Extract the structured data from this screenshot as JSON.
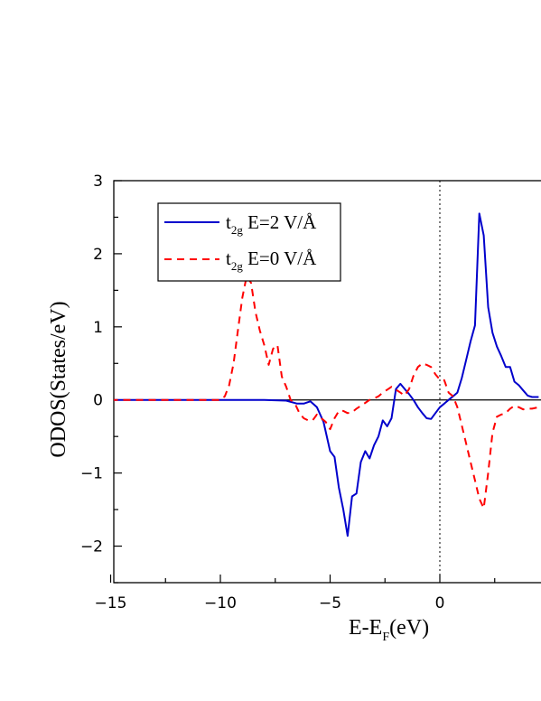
{
  "chart_data": {
    "type": "line",
    "xlabel_main": "E-E",
    "xlabel_sub": "F",
    "xlabel_unit": "(eV)",
    "ylabel": "ODOS(States/eV)",
    "xlim": [
      -15,
      4.5
    ],
    "ylim": [
      -2.5,
      3
    ],
    "xticks": [
      -15,
      -10,
      -5,
      0
    ],
    "xtick_labels": [
      "−15",
      "−10",
      "−5",
      "0"
    ],
    "yticks": [
      -2,
      -1,
      0,
      1,
      2,
      3
    ],
    "ytick_labels": [
      "−2",
      "−1",
      "0",
      "1",
      "2",
      "3"
    ],
    "grid": false,
    "legend_position": "top-left",
    "reference_lines": {
      "zero_horizontal": true,
      "fermi_vertical_dotted": true
    },
    "series": [
      {
        "name_main": "t",
        "name_sub": "2g",
        "name_rest": " E=2 V/Å",
        "color": "#0000cc",
        "dash": "solid",
        "x": [
          -15,
          -10,
          -8,
          -7,
          -6.5,
          -6.2,
          -5.9,
          -5.6,
          -5.3,
          -5.0,
          -4.8,
          -4.6,
          -4.4,
          -4.2,
          -4.0,
          -3.8,
          -3.6,
          -3.4,
          -3.2,
          -3.0,
          -2.8,
          -2.6,
          -2.4,
          -2.2,
          -2.0,
          -1.8,
          -1.6,
          -1.4,
          -1.2,
          -1.0,
          -0.8,
          -0.6,
          -0.4,
          -0.2,
          0.0,
          0.2,
          0.4,
          0.6,
          0.8,
          1.0,
          1.2,
          1.4,
          1.6,
          1.8,
          2.0,
          2.2,
          2.4,
          2.6,
          2.8,
          3.0,
          3.2,
          3.4,
          3.6,
          3.8,
          4.0,
          4.2,
          4.5
        ],
        "y": [
          0,
          0,
          0.0,
          -0.01,
          -0.05,
          -0.05,
          -0.02,
          -0.1,
          -0.3,
          -0.7,
          -0.78,
          -1.2,
          -1.5,
          -1.86,
          -1.32,
          -1.28,
          -0.85,
          -0.7,
          -0.8,
          -0.62,
          -0.5,
          -0.28,
          -0.36,
          -0.25,
          0.15,
          0.22,
          0.15,
          0.08,
          0.0,
          -0.1,
          -0.18,
          -0.25,
          -0.26,
          -0.18,
          -0.1,
          -0.05,
          0.0,
          0.05,
          0.1,
          0.3,
          0.55,
          0.8,
          1.02,
          2.55,
          2.25,
          1.27,
          0.92,
          0.73,
          0.6,
          0.45,
          0.45,
          0.25,
          0.2,
          0.13,
          0.06,
          0.04,
          0.04
        ]
      },
      {
        "name_main": "t",
        "name_sub": "2g",
        "name_rest": " E=0 V/Å",
        "color": "#ff0000",
        "dash": "dashed",
        "x": [
          -15,
          -10.0,
          -9.8,
          -9.6,
          -9.4,
          -9.2,
          -9.0,
          -8.8,
          -8.6,
          -8.4,
          -8.2,
          -8.0,
          -7.8,
          -7.6,
          -7.4,
          -7.2,
          -7.0,
          -6.8,
          -6.6,
          -6.4,
          -6.2,
          -6.0,
          -5.8,
          -5.6,
          -5.4,
          -5.2,
          -5.0,
          -4.8,
          -4.6,
          -4.4,
          -4.2,
          -4.0,
          -3.8,
          -3.6,
          -3.4,
          -3.2,
          -3.0,
          -2.8,
          -2.6,
          -2.4,
          -2.2,
          -2.0,
          -1.8,
          -1.6,
          -1.4,
          -1.2,
          -1.0,
          -0.8,
          -0.6,
          -0.4,
          -0.2,
          0.0,
          0.2,
          0.4,
          0.6,
          0.8,
          1.0,
          1.2,
          1.4,
          1.6,
          1.8,
          2.0,
          2.2,
          2.4,
          2.6,
          2.8,
          3.0,
          3.2,
          3.4,
          3.6,
          3.8,
          4.0,
          4.2,
          4.5
        ],
        "y": [
          0,
          0.0,
          0.05,
          0.2,
          0.5,
          0.95,
          1.4,
          1.7,
          1.6,
          1.2,
          0.95,
          0.75,
          0.48,
          0.7,
          0.75,
          0.32,
          0.18,
          0.0,
          -0.05,
          -0.18,
          -0.25,
          -0.28,
          -0.28,
          -0.2,
          -0.25,
          -0.3,
          -0.4,
          -0.25,
          -0.15,
          -0.15,
          -0.18,
          -0.17,
          -0.12,
          -0.08,
          -0.04,
          0.0,
          0.02,
          0.05,
          0.1,
          0.14,
          0.18,
          0.14,
          0.1,
          0.06,
          0.15,
          0.33,
          0.45,
          0.5,
          0.48,
          0.45,
          0.35,
          0.28,
          0.27,
          0.1,
          0.05,
          -0.1,
          -0.35,
          -0.6,
          -0.85,
          -1.1,
          -1.35,
          -1.48,
          -1.0,
          -0.45,
          -0.23,
          -0.2,
          -0.18,
          -0.12,
          -0.08,
          -0.1,
          -0.13,
          -0.12,
          -0.12,
          -0.1
        ]
      }
    ]
  }
}
